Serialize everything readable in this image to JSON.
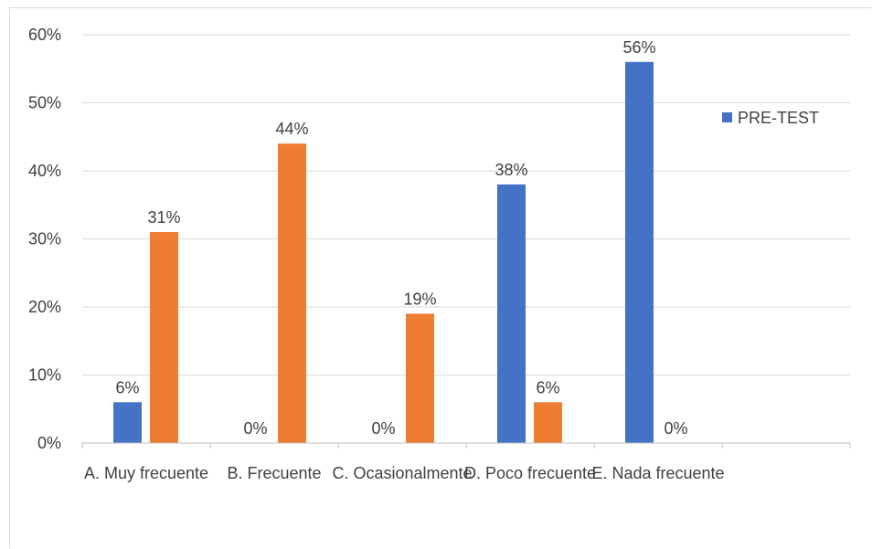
{
  "chart_data": {
    "type": "bar",
    "categories": [
      "A. Muy frecuente",
      "B. Frecuente",
      "C. Ocasionalmente",
      "D. Poco frecuente",
      "E. Nada frecuente"
    ],
    "series": [
      {
        "name": "PRE-TEST",
        "values": [
          6,
          0,
          0,
          38,
          56
        ],
        "color": "#4472C4"
      },
      {
        "values": [
          31,
          44,
          19,
          6,
          0
        ],
        "color": "#ED7D31"
      }
    ],
    "data_labels": [
      [
        "6%",
        "0%",
        "0%",
        "38%",
        "56%"
      ],
      [
        "31%",
        "44%",
        "19%",
        "6%",
        "0%"
      ]
    ],
    "y_ticks": [
      "0%",
      "10%",
      "20%",
      "30%",
      "40%",
      "50%",
      "60%"
    ],
    "ylim": [
      0,
      60
    ],
    "grid": true,
    "legend_position": "right",
    "legend": {
      "label": "PRE-TEST",
      "color": "#4472C4"
    }
  }
}
